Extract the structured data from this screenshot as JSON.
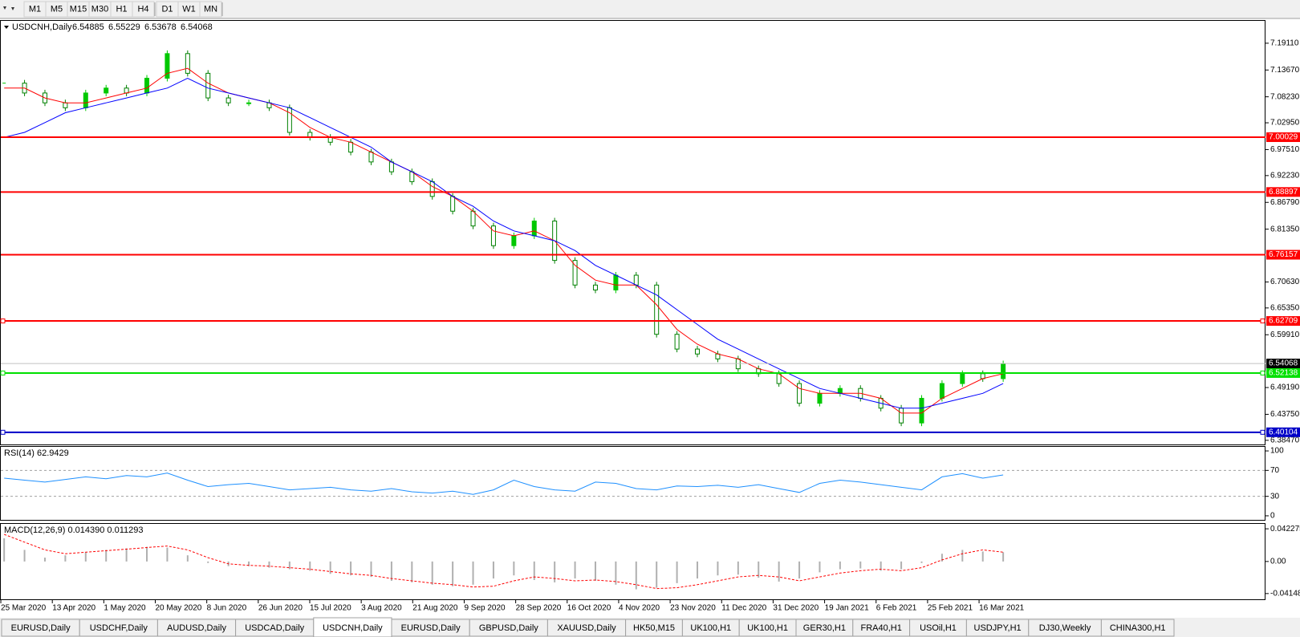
{
  "toolbar": {
    "periods": [
      "M1",
      "M5",
      "M15",
      "M30",
      "H1",
      "H4",
      "D1",
      "W1",
      "MN"
    ]
  },
  "chart_data": [
    {
      "type": "candlestick",
      "title": "USDCNH,Daily",
      "quote": [
        6.54885,
        6.55229,
        6.53678,
        6.54068
      ],
      "close": [
        7.11,
        7.09,
        7.07,
        7.06,
        7.09,
        7.1,
        7.09,
        7.12,
        7.17,
        7.13,
        7.08,
        7.07,
        7.07,
        7.06,
        7.01,
        7.0,
        6.99,
        6.97,
        6.95,
        6.93,
        6.91,
        6.88,
        6.85,
        6.82,
        6.78,
        6.8,
        6.83,
        6.75,
        6.7,
        6.69,
        6.72,
        6.7,
        6.6,
        6.57,
        6.56,
        6.55,
        6.53,
        6.52,
        6.5,
        6.46,
        6.48,
        6.49,
        6.47,
        6.45,
        6.42,
        6.47,
        6.5,
        6.52,
        6.51,
        6.54
      ],
      "up_color": "#00c800",
      "down_color": "#008000",
      "series": [
        {
          "color": "#ff0000",
          "values": [
            7.1,
            7.1,
            7.08,
            7.07,
            7.07,
            7.08,
            7.09,
            7.1,
            7.13,
            7.14,
            7.11,
            7.09,
            7.08,
            7.07,
            7.05,
            7.02,
            7.0,
            6.99,
            6.97,
            6.95,
            6.93,
            6.9,
            6.88,
            6.85,
            6.81,
            6.8,
            6.81,
            6.79,
            6.74,
            6.71,
            6.7,
            6.7,
            6.66,
            6.61,
            6.58,
            6.56,
            6.55,
            6.53,
            6.52,
            6.49,
            6.48,
            6.48,
            6.48,
            6.47,
            6.44,
            6.44,
            6.47,
            6.49,
            6.51,
            6.52
          ]
        },
        {
          "color": "#0000ff",
          "values": [
            7.0,
            7.01,
            7.03,
            7.05,
            7.06,
            7.07,
            7.08,
            7.09,
            7.1,
            7.12,
            7.1,
            7.09,
            7.08,
            7.07,
            7.06,
            7.04,
            7.02,
            7.0,
            6.98,
            6.95,
            6.93,
            6.91,
            6.88,
            6.86,
            6.83,
            6.81,
            6.8,
            6.79,
            6.77,
            6.74,
            6.72,
            6.7,
            6.68,
            6.65,
            6.62,
            6.59,
            6.57,
            6.55,
            6.53,
            6.51,
            6.49,
            6.48,
            6.47,
            6.46,
            6.45,
            6.45,
            6.46,
            6.47,
            6.48,
            6.5
          ]
        }
      ],
      "levels": [
        {
          "value": 7.00029,
          "color": "#ff0000"
        },
        {
          "value": 6.88897,
          "color": "#ff0000"
        },
        {
          "value": 6.76157,
          "color": "#ff0000"
        },
        {
          "value": 6.62709,
          "color": "#ff0000"
        },
        {
          "value": 6.54068,
          "color": "#000000"
        },
        {
          "value": 6.52138,
          "color": "#00e000"
        },
        {
          "value": 6.40104,
          "color": "#0000c8"
        }
      ],
      "ylim": [
        6.3763,
        7.2365
      ],
      "yticks": [
        {
          "value": 7.1911,
          "label": "7.19110"
        },
        {
          "value": 7.1367,
          "label": "7.13670"
        },
        {
          "value": 7.0823,
          "label": "7.08230"
        },
        {
          "value": 7.0295,
          "label": "7.02950"
        },
        {
          "value": 6.9751,
          "label": "6.97510"
        },
        {
          "value": 6.9223,
          "label": "6.92230"
        },
        {
          "value": 6.8679,
          "label": "6.86790"
        },
        {
          "value": 6.8135,
          "label": "6.81350"
        },
        {
          "value": 6.7063,
          "label": "6.70630"
        },
        {
          "value": 6.6535,
          "label": "6.65350"
        },
        {
          "value": 6.5991,
          "label": "6.59910"
        },
        {
          "value": 6.4919,
          "label": "6.49190"
        },
        {
          "value": 6.4375,
          "label": "6.43750"
        },
        {
          "value": 6.3847,
          "label": "6.38470"
        }
      ]
    },
    {
      "type": "line",
      "title": "RSI(14) 62.9429",
      "color": "#1e90ff",
      "values": [
        58,
        55,
        52,
        56,
        60,
        57,
        62,
        60,
        66,
        55,
        45,
        48,
        50,
        45,
        40,
        42,
        44,
        40,
        38,
        42,
        37,
        35,
        38,
        33,
        40,
        55,
        45,
        40,
        38,
        52,
        50,
        42,
        40,
        46,
        45,
        47,
        44,
        48,
        42,
        36,
        50,
        55,
        52,
        48,
        44,
        40,
        60,
        65,
        58,
        63
      ],
      "ylim": [
        -6.25,
        106.25
      ],
      "yticks": [
        100,
        70,
        30,
        0
      ],
      "levels": [
        70,
        30
      ]
    },
    {
      "type": "macd",
      "title": "MACD(12,26,9) 0.014390 0.011293",
      "color": "#ff0000",
      "bar_color": "#b0b0b0",
      "histogram": [
        0.03,
        0.015,
        0.005,
        0.008,
        0.012,
        0.015,
        0.017,
        0.019,
        0.018,
        0.008,
        -0.002,
        -0.006,
        -0.006,
        -0.008,
        -0.01,
        -0.012,
        -0.016,
        -0.018,
        -0.02,
        -0.025,
        -0.027,
        -0.03,
        -0.032,
        -0.03,
        -0.022,
        -0.018,
        -0.024,
        -0.027,
        -0.022,
        -0.025,
        -0.03,
        -0.036,
        -0.034,
        -0.028,
        -0.022,
        -0.018,
        -0.017,
        -0.021,
        -0.026,
        -0.022,
        -0.014,
        -0.01,
        -0.009,
        -0.012,
        -0.01,
        -0.002,
        0.01,
        0.015,
        0.013,
        0.012
      ],
      "signal": [
        0.035,
        0.025,
        0.015,
        0.01,
        0.012,
        0.014,
        0.016,
        0.018,
        0.02,
        0.015,
        0.005,
        -0.003,
        -0.005,
        -0.006,
        -0.008,
        -0.01,
        -0.013,
        -0.016,
        -0.018,
        -0.022,
        -0.025,
        -0.028,
        -0.03,
        -0.033,
        -0.032,
        -0.025,
        -0.02,
        -0.022,
        -0.025,
        -0.024,
        -0.026,
        -0.03,
        -0.035,
        -0.034,
        -0.03,
        -0.025,
        -0.02,
        -0.018,
        -0.02,
        -0.025,
        -0.02,
        -0.015,
        -0.012,
        -0.01,
        -0.012,
        -0.008,
        0.002,
        0.01,
        0.015,
        0.012
      ],
      "ylim": [
        -0.0489,
        0.04864
      ],
      "yticks": [
        0.042275,
        {
          "value": 0,
          "label": "0.00"
        },
        -0.04148
      ]
    }
  ],
  "time_axis": [
    "25 Mar 2020",
    "13 Apr 2020",
    "1 May 2020",
    "20 May 2020",
    "8 Jun 2020",
    "26 Jun 2020",
    "15 Jul 2020",
    "3 Aug 2020",
    "21 Aug 2020",
    "9 Sep 2020",
    "28 Sep 2020",
    "16 Oct 2020",
    "4 Nov 2020",
    "23 Nov 2020",
    "11 Dec 2020",
    "31 Dec 2020",
    "19 Jan 2021",
    "6 Feb 2021",
    "25 Feb 2021",
    "16 Mar 2021"
  ],
  "tabs": [
    "EURUSD,Daily",
    "USDCHF,Daily",
    "AUDUSD,Daily",
    "USDCAD,Daily",
    "USDCNH,Daily",
    "EURUSD,Daily",
    "GBPUSD,Daily",
    "XAUUSD,Daily",
    "HK50,M15",
    "UK100,H1",
    "UK100,H1",
    "GER30,H1",
    "FRA40,H1",
    "USOil,H1",
    "USDJPY,H1",
    "DJ30,Weekly",
    "CHINA300,H1"
  ],
  "active_tab": 4
}
